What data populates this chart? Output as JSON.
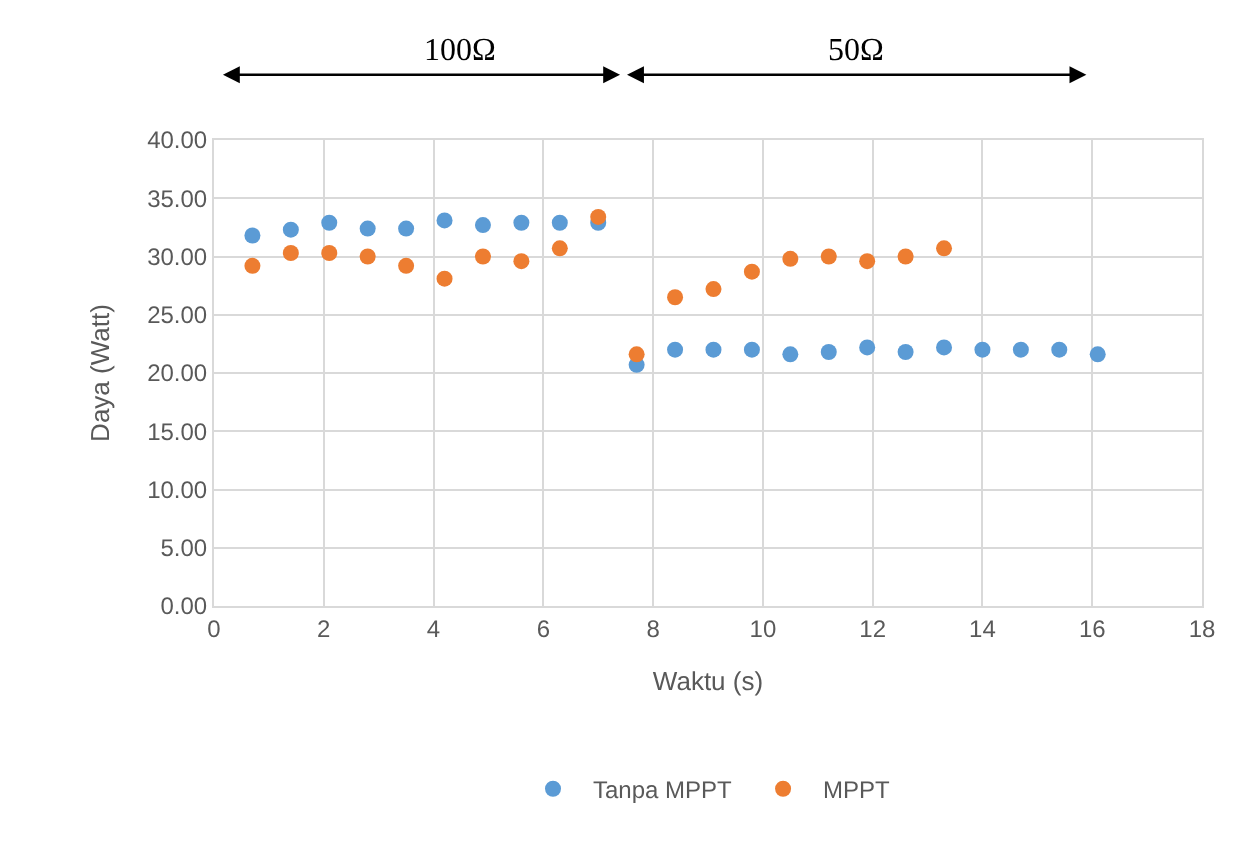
{
  "chart_data": {
    "type": "scatter",
    "xlabel": "Waktu (s)",
    "ylabel": "Daya (Watt)",
    "annotations": [
      "100Ω",
      "50Ω"
    ],
    "xlim": [
      0,
      18
    ],
    "xticks": [
      0,
      2,
      4,
      6,
      8,
      10,
      12,
      14,
      16,
      18
    ],
    "ylim": [
      0,
      40
    ],
    "yticks": [
      {
        "value": 0,
        "label": "0.00"
      },
      {
        "value": 5,
        "label": "5.00"
      },
      {
        "value": 10,
        "label": "10.00"
      },
      {
        "value": 15,
        "label": "15.00"
      },
      {
        "value": 20,
        "label": "20.00"
      },
      {
        "value": 25,
        "label": "25.00"
      },
      {
        "value": 30,
        "label": "30.00"
      },
      {
        "value": 35,
        "label": "35.00"
      },
      {
        "value": 40,
        "label": "40.00"
      }
    ],
    "grid": true,
    "legend": "bottom",
    "marker": "circle",
    "series": [
      {
        "name": "Tanpa MPPT",
        "color": "#5b9bd5",
        "x": [
          0.7,
          1.4,
          2.1,
          2.8,
          3.5,
          4.2,
          4.9,
          5.6,
          6.3,
          7.0,
          7.7,
          8.4,
          9.1,
          9.8,
          10.5,
          11.2,
          11.9,
          12.6,
          13.3,
          14.0,
          14.7,
          15.4,
          16.1
        ],
        "values": [
          31.8,
          32.3,
          32.9,
          32.4,
          32.4,
          33.1,
          32.7,
          32.9,
          32.9,
          32.9,
          20.7,
          22.0,
          22.0,
          22.0,
          21.6,
          21.8,
          22.2,
          21.8,
          22.2,
          22.0,
          22.0,
          22.0,
          21.6
        ]
      },
      {
        "name": "MPPT",
        "color": "#ed7d31",
        "x": [
          0.7,
          1.4,
          2.1,
          2.8,
          3.5,
          4.2,
          4.9,
          5.6,
          6.3,
          7.0,
          7.7,
          8.4,
          9.1,
          9.8,
          10.5,
          11.2,
          11.9,
          12.6,
          13.3
        ],
        "values": [
          29.2,
          30.3,
          30.3,
          30.0,
          29.2,
          28.1,
          30.0,
          29.6,
          30.7,
          33.4,
          21.6,
          26.5,
          27.2,
          28.7,
          29.8,
          30.0,
          29.6,
          30.0,
          30.7
        ]
      }
    ]
  }
}
